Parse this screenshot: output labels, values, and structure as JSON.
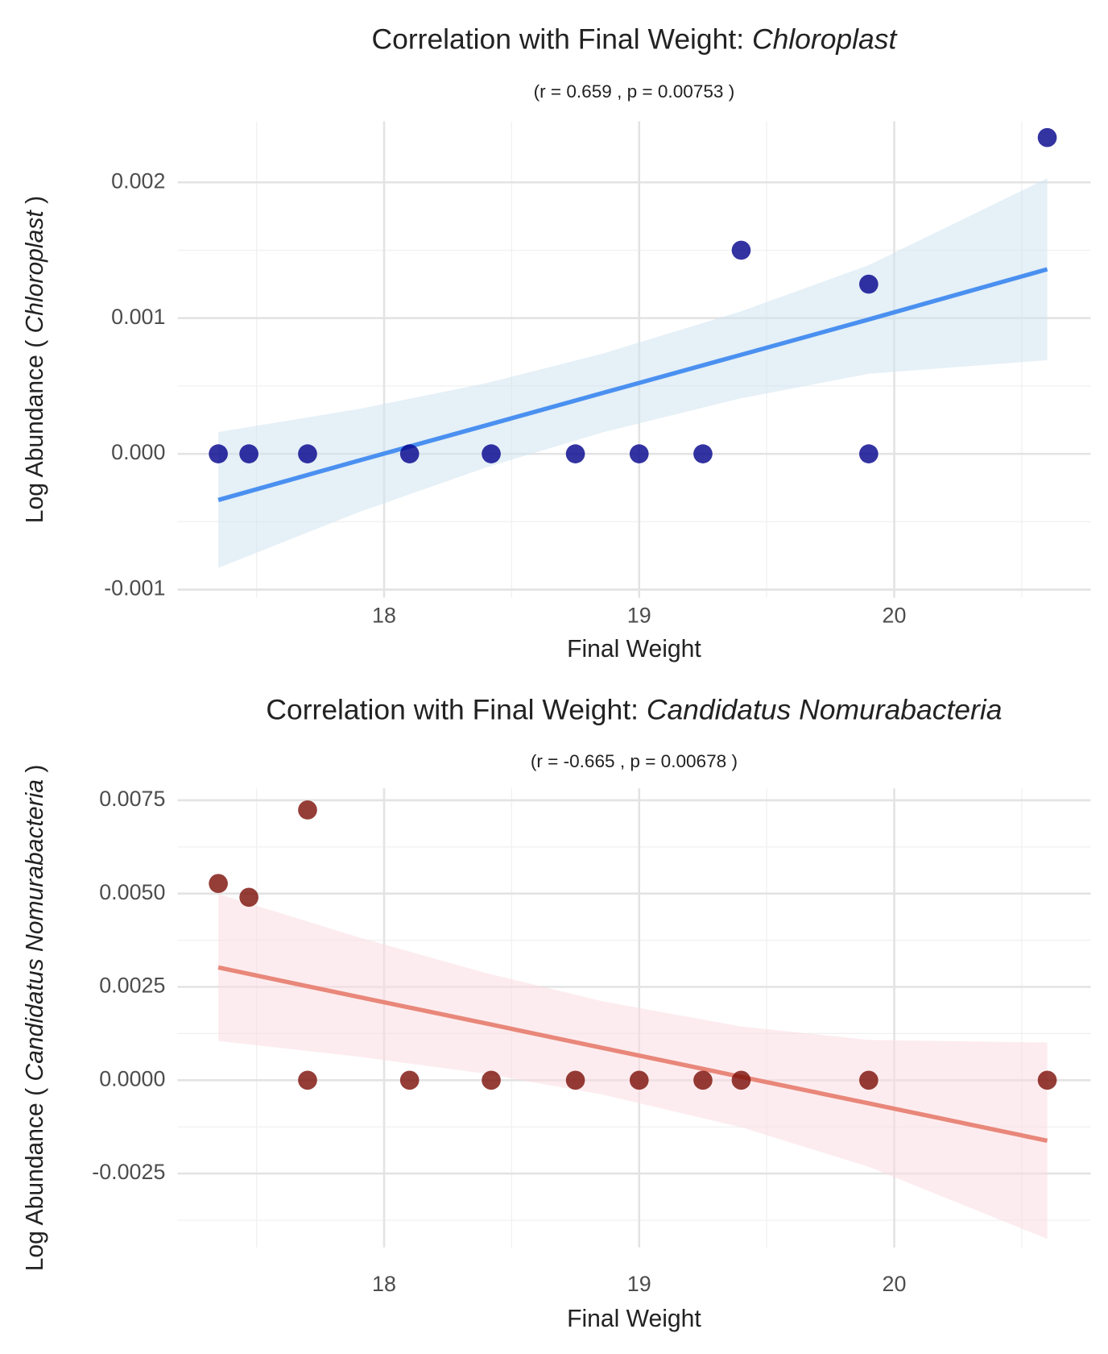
{
  "chart_data": [
    {
      "type": "scatter",
      "title": "Correlation with Final Weight: ",
      "title_italic": "Chloroplast",
      "subtitle": "(r = 0.659 , p = 0.00753 )",
      "xlabel": "Final Weight",
      "ylabel": "Log Abundance ( ",
      "ylabel_italic": "Chloroplast",
      "ylabel_end": " )",
      "xlim": [
        17.19,
        20.77
      ],
      "xticks": [
        18,
        19,
        20
      ],
      "ylim": [
        -0.00106,
        0.00245
      ],
      "yticks": [
        -0.001,
        {
          "value": 0,
          "label": "0.000"
        },
        0.001,
        0.002
      ],
      "grid": true,
      "minor_grid": true,
      "color": "#00008b",
      "line_color": "#4a90f0",
      "band_color": "#cfe4f1",
      "x": [
        17.35,
        17.47,
        17.7,
        18.1,
        18.42,
        18.75,
        19.0,
        19.25,
        19.4,
        19.9,
        19.9,
        20.6
      ],
      "values": [
        0,
        0,
        0,
        0,
        0,
        0,
        0,
        0,
        0.0015,
        0,
        0.00125,
        0.00233
      ],
      "fit": {
        "x": [
          17.35,
          17.9,
          18.4,
          18.86,
          19.4,
          19.9,
          20.6
        ],
        "y": [
          -0.00034,
          -5e-05,
          0.00021,
          0.00045,
          0.00073,
          0.00099,
          0.00136
        ],
        "lower": [
          -0.00084,
          -0.00043,
          -0.0001,
          0.00016,
          0.00041,
          0.00059,
          0.00069
        ],
        "upper": [
          0.00016,
          0.00033,
          0.00052,
          0.00074,
          0.00105,
          0.00139,
          0.00203
        ]
      }
    },
    {
      "type": "scatter",
      "title": "Correlation with Final Weight: ",
      "title_italic": "Candidatus Nomurabacteria",
      "subtitle": "(r = -0.665 , p = 0.00678 )",
      "xlabel": "Final Weight",
      "ylabel": "Log Abundance ( ",
      "ylabel_italic": "Candidatus Nomurabacteria",
      "ylabel_end": " )",
      "xlim": [
        17.19,
        20.77
      ],
      "xticks": [
        18,
        19,
        20
      ],
      "ylim": [
        -0.00448,
        0.00782
      ],
      "yticks": [
        -0.0025,
        {
          "value": 0,
          "label": "0.0000"
        },
        0.0025,
        {
          "value": 0.005,
          "label": "0.0050"
        },
        0.0075
      ],
      "grid": true,
      "minor_grid": true,
      "color": "#7a0d05",
      "line_color": "#e8877a",
      "band_color": "#fbdde1",
      "x": [
        17.35,
        17.47,
        17.7,
        17.7,
        18.1,
        18.42,
        18.75,
        19.0,
        19.25,
        19.4,
        19.9,
        20.6
      ],
      "values": [
        0.00527,
        0.0049,
        0.00724,
        0,
        0,
        0,
        0,
        0,
        0,
        0,
        0,
        0
      ],
      "fit": {
        "x": [
          17.35,
          17.9,
          18.4,
          18.86,
          19.4,
          19.9,
          20.6
        ],
        "y": [
          0.00302,
          0.00223,
          0.00152,
          0.00086,
          9e-05,
          -0.00062,
          -0.00162
        ],
        "lower": [
          0.00105,
          0.00063,
          0.00017,
          -0.00039,
          -0.00126,
          -0.00232,
          -0.00425
        ],
        "upper": [
          0.00499,
          0.00383,
          0.00287,
          0.00211,
          0.00144,
          0.00108,
          0.00101
        ]
      }
    }
  ]
}
